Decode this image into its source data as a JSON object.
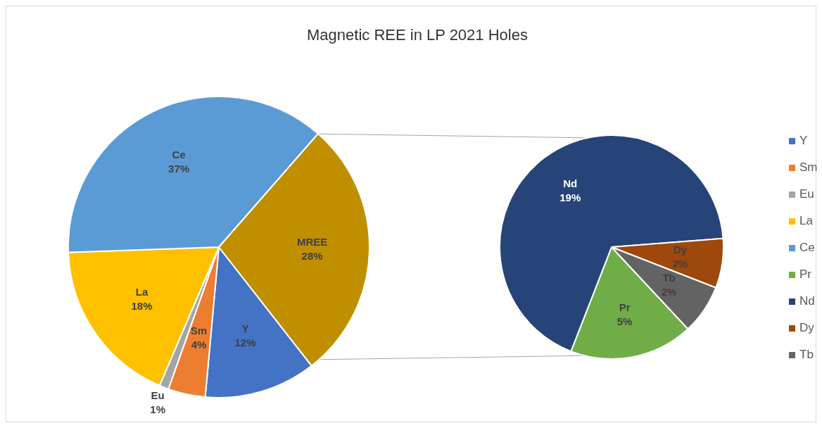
{
  "chart_data": [
    {
      "type": "pie",
      "title": "Magnetic REE in LP 2021 Holes",
      "categories": [
        "Y",
        "Sm",
        "Eu",
        "La",
        "Ce",
        "MREE"
      ],
      "values": [
        12,
        4,
        1,
        18,
        37,
        28
      ],
      "value_labels": [
        "12%",
        "4%",
        "1%",
        "18%",
        "37%",
        "28%"
      ],
      "colors": [
        "#4472c4",
        "#ed7d31",
        "#a5a5a5",
        "#ffc000",
        "#5b9bd5",
        "#bf8f00"
      ],
      "legend": "right"
    },
    {
      "type": "pie",
      "categories": [
        "Pr",
        "Nd",
        "Dy",
        "Tb"
      ],
      "values": [
        5,
        19,
        2,
        2
      ],
      "value_labels": [
        "5%",
        "19%",
        "2%",
        "2%"
      ],
      "colors": [
        "#70ad47",
        "#264478",
        "#9e480e",
        "#636363"
      ],
      "legend": "right"
    }
  ]
}
